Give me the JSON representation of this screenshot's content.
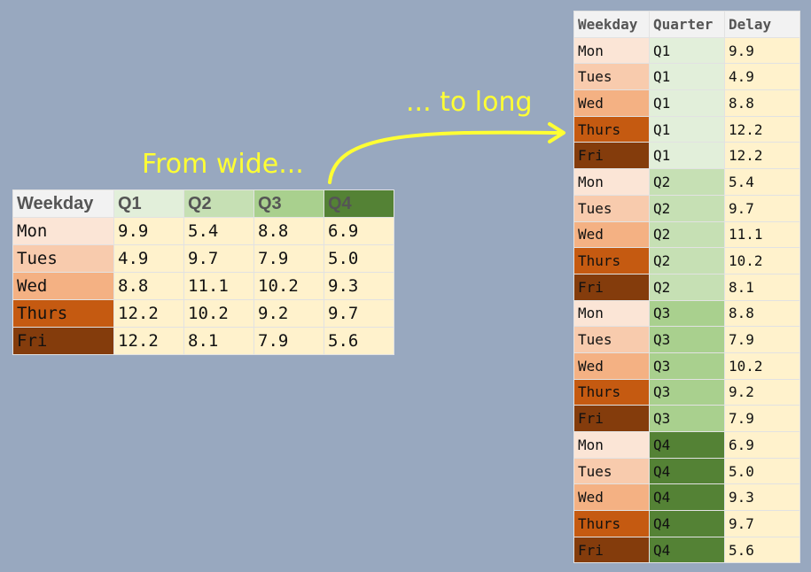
{
  "annotations": {
    "from_wide": "From wide...",
    "to_long": "... to long"
  },
  "wide_table": {
    "headers": [
      "Weekday",
      "Q1",
      "Q2",
      "Q3",
      "Q4"
    ],
    "rows": [
      {
        "day": "Mon",
        "values": [
          "9.9",
          "5.4",
          "8.8",
          "6.9"
        ]
      },
      {
        "day": "Tues",
        "values": [
          "4.9",
          "9.7",
          "7.9",
          "5.0"
        ]
      },
      {
        "day": "Wed",
        "values": [
          "8.8",
          "11.1",
          "10.2",
          "9.3"
        ]
      },
      {
        "day": "Thurs",
        "values": [
          "12.2",
          "10.2",
          "9.2",
          "9.7"
        ]
      },
      {
        "day": "Fri",
        "values": [
          "12.2",
          "8.1",
          "7.9",
          "5.6"
        ]
      }
    ]
  },
  "long_table": {
    "headers": [
      "Weekday",
      "Quarter",
      "Delay"
    ],
    "rows": [
      [
        "Mon",
        "Q1",
        "9.9"
      ],
      [
        "Tues",
        "Q1",
        "4.9"
      ],
      [
        "Wed",
        "Q1",
        "8.8"
      ],
      [
        "Thurs",
        "Q1",
        "12.2"
      ],
      [
        "Fri",
        "Q1",
        "12.2"
      ],
      [
        "Mon",
        "Q2",
        "5.4"
      ],
      [
        "Tues",
        "Q2",
        "9.7"
      ],
      [
        "Wed",
        "Q2",
        "11.1"
      ],
      [
        "Thurs",
        "Q2",
        "10.2"
      ],
      [
        "Fri",
        "Q2",
        "8.1"
      ],
      [
        "Mon",
        "Q3",
        "8.8"
      ],
      [
        "Tues",
        "Q3",
        "7.9"
      ],
      [
        "Wed",
        "Q3",
        "10.2"
      ],
      [
        "Thurs",
        "Q3",
        "9.2"
      ],
      [
        "Fri",
        "Q3",
        "7.9"
      ],
      [
        "Mon",
        "Q4",
        "6.9"
      ],
      [
        "Tues",
        "Q4",
        "5.0"
      ],
      [
        "Wed",
        "Q4",
        "9.3"
      ],
      [
        "Thurs",
        "Q4",
        "9.7"
      ],
      [
        "Fri",
        "Q4",
        "5.6"
      ]
    ]
  },
  "colors": {
    "background": "#98a8bf",
    "annotation": "#ffff33",
    "header": "#f2f2f2",
    "value": "#fff2cc",
    "weekday": {
      "Mon": "#fbe5d6",
      "Tues": "#f8cbad",
      "Wed": "#f4b183",
      "Thurs": "#c55a11",
      "Fri": "#843c0c"
    },
    "quarter": {
      "Q1": "#e2efda",
      "Q2": "#c6e0b4",
      "Q3": "#a9d08e",
      "Q4": "#548235"
    }
  }
}
